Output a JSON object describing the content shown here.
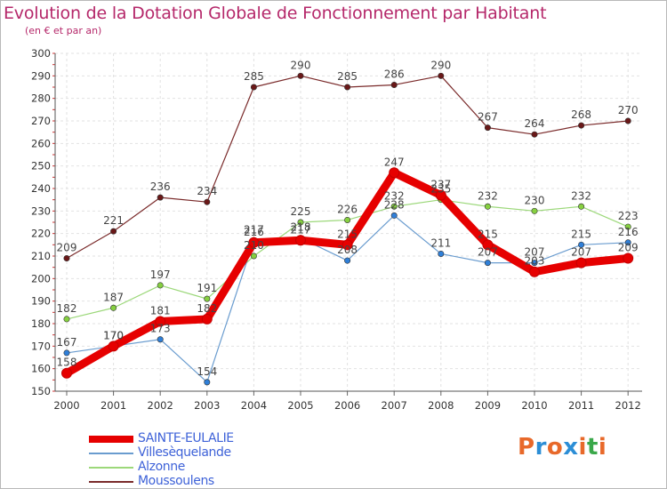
{
  "header": {
    "title": "Evolution de la Dotation Globale de Fonctionnement par Habitant",
    "subtitle": "(en € et par an)"
  },
  "logo": {
    "text": [
      "P",
      "r",
      "o",
      "x",
      "i",
      "t",
      "i"
    ],
    "colors": [
      "#e8692a",
      "#2c8ed6",
      "#e8692a",
      "#2c8ed6",
      "#e8692a",
      "#3aa84a",
      "#e8692a"
    ]
  },
  "chart_data": {
    "type": "line",
    "title": "Evolution de la Dotation Globale de Fonctionnement par Habitant",
    "subtitle": "(en € et par an)",
    "xlabel": "",
    "ylabel": "",
    "x": [
      "2000",
      "2001",
      "2002",
      "2003",
      "2004",
      "2005",
      "2006",
      "2007",
      "2008",
      "2009",
      "2010",
      "2011",
      "2012"
    ],
    "ylim": [
      150,
      300
    ],
    "yticks": [
      150,
      160,
      170,
      180,
      190,
      200,
      210,
      220,
      230,
      240,
      250,
      260,
      270,
      280,
      290,
      300
    ],
    "grid": true,
    "legend_position": "bottom-left",
    "series": [
      {
        "name": "SAINTE-EULALIE",
        "color": "#e60000",
        "emphasis": true,
        "values": [
          158,
          170,
          181,
          182,
          216,
          217,
          215,
          247,
          237,
          215,
          203,
          207,
          209
        ],
        "labels": [
          "158",
          "170",
          "181",
          "182",
          "216",
          "217",
          "215",
          "247",
          "237",
          "215",
          "203",
          "207",
          "209"
        ]
      },
      {
        "name": "Villesèquelande",
        "color": "#6a9ccf",
        "marker": "#2f7fd8",
        "values": [
          167,
          170,
          173,
          154,
          217,
          218,
          208,
          228,
          211,
          207,
          207,
          215,
          216
        ],
        "labels": [
          "167",
          "170",
          "173",
          "154",
          "217",
          "218",
          "208",
          "228",
          "211",
          "207",
          "207",
          "215",
          "216"
        ]
      },
      {
        "name": "Alzonne",
        "color": "#9cd87a",
        "marker": "#86d040",
        "values": [
          182,
          187,
          197,
          191,
          210,
          225,
          226,
          232,
          235,
          232,
          230,
          232,
          223
        ],
        "labels": [
          "182",
          "187",
          "197",
          "191",
          "210",
          "225",
          "226",
          "232",
          "235",
          "232",
          "230",
          "232",
          "223"
        ]
      },
      {
        "name": "Moussoulens",
        "color": "#7a2a2a",
        "marker": "#6a1818",
        "values": [
          209,
          221,
          236,
          234,
          285,
          290,
          285,
          286,
          290,
          267,
          264,
          268,
          270
        ],
        "labels": [
          "209",
          "221",
          "236",
          "234",
          "285",
          "290",
          "285",
          "286",
          "290",
          "267",
          "264",
          "268",
          "270"
        ]
      }
    ]
  }
}
